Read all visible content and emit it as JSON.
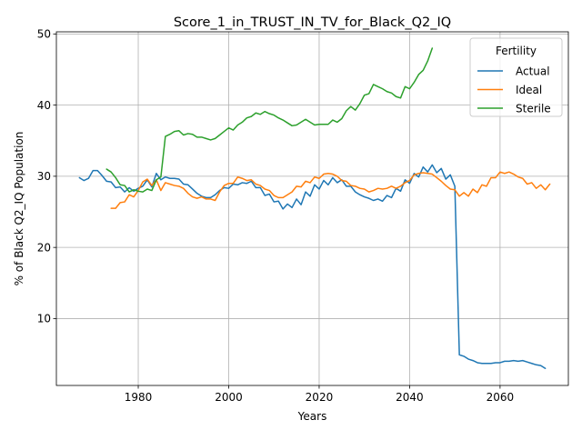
{
  "chart_data": {
    "type": "line",
    "title": "Score_1_in_TRUST_IN_TV_for_Black_Q2_IQ",
    "xlabel": "Years",
    "ylabel": "% of Black Q2_IQ Population",
    "xlim": [
      1961.9,
      2075.1
    ],
    "ylim": [
      0.6,
      50.3
    ],
    "xticks": [
      1980,
      2000,
      2020,
      2040,
      2060
    ],
    "yticks": [
      10,
      20,
      30,
      40,
      50
    ],
    "grid": true,
    "legend": {
      "title": "Fertility",
      "placement": "top-right"
    },
    "series": [
      {
        "name": "Actual",
        "color": "#1f77b4",
        "points": [
          [
            1967,
            29.8
          ],
          [
            1968,
            29.4
          ],
          [
            1969,
            29.7
          ],
          [
            1970,
            30.8
          ],
          [
            1971,
            30.8
          ],
          [
            1972,
            30.1
          ],
          [
            1973,
            29.3
          ],
          [
            1974,
            29.2
          ],
          [
            1975,
            28.4
          ],
          [
            1976,
            28.5
          ],
          [
            1977,
            27.8
          ],
          [
            1978,
            28.4
          ],
          [
            1979,
            27.9
          ],
          [
            1980,
            28.3
          ],
          [
            1981,
            28.6
          ],
          [
            1982,
            29.5
          ],
          [
            1983,
            28.5
          ],
          [
            1984,
            30.4
          ],
          [
            1985,
            29.5
          ],
          [
            1986,
            29.9
          ],
          [
            1987,
            29.7
          ],
          [
            1988,
            29.7
          ],
          [
            1989,
            29.6
          ],
          [
            1990,
            28.9
          ],
          [
            1991,
            28.8
          ],
          [
            1992,
            28.2
          ],
          [
            1993,
            27.6
          ],
          [
            1994,
            27.2
          ],
          [
            1995,
            27.0
          ],
          [
            1996,
            27.0
          ],
          [
            1997,
            27.4
          ],
          [
            1998,
            28.0
          ],
          [
            1999,
            28.4
          ],
          [
            2000,
            28.3
          ],
          [
            2001,
            28.9
          ],
          [
            2002,
            28.8
          ],
          [
            2003,
            29.1
          ],
          [
            2004,
            29.0
          ],
          [
            2005,
            29.3
          ],
          [
            2006,
            28.4
          ],
          [
            2007,
            28.4
          ],
          [
            2008,
            27.3
          ],
          [
            2009,
            27.5
          ],
          [
            2010,
            26.4
          ],
          [
            2011,
            26.5
          ],
          [
            2012,
            25.4
          ],
          [
            2013,
            26.1
          ],
          [
            2014,
            25.6
          ],
          [
            2015,
            26.8
          ],
          [
            2016,
            26.0
          ],
          [
            2017,
            27.8
          ],
          [
            2018,
            27.2
          ],
          [
            2019,
            28.8
          ],
          [
            2020,
            28.2
          ],
          [
            2021,
            29.4
          ],
          [
            2022,
            28.8
          ],
          [
            2023,
            29.8
          ],
          [
            2024,
            29.1
          ],
          [
            2025,
            29.5
          ],
          [
            2026,
            28.6
          ],
          [
            2027,
            28.6
          ],
          [
            2028,
            27.8
          ],
          [
            2029,
            27.4
          ],
          [
            2030,
            27.1
          ],
          [
            2031,
            26.9
          ],
          [
            2032,
            26.6
          ],
          [
            2033,
            26.8
          ],
          [
            2034,
            26.5
          ],
          [
            2035,
            27.3
          ],
          [
            2036,
            27.0
          ],
          [
            2037,
            28.3
          ],
          [
            2038,
            27.9
          ],
          [
            2039,
            29.5
          ],
          [
            2040,
            29.0
          ],
          [
            2041,
            30.4
          ],
          [
            2042,
            29.9
          ],
          [
            2043,
            31.3
          ],
          [
            2044,
            30.6
          ],
          [
            2045,
            31.6
          ],
          [
            2046,
            30.5
          ],
          [
            2047,
            31.1
          ],
          [
            2048,
            29.6
          ],
          [
            2049,
            30.2
          ],
          [
            2050,
            28.6
          ],
          [
            2051,
            4.9
          ],
          [
            2052,
            4.7
          ],
          [
            2053,
            4.3
          ],
          [
            2054,
            4.1
          ],
          [
            2055,
            3.8
          ],
          [
            2056,
            3.7
          ],
          [
            2057,
            3.7
          ],
          [
            2058,
            3.7
          ],
          [
            2059,
            3.8
          ],
          [
            2060,
            3.8
          ],
          [
            2061,
            4.0
          ],
          [
            2062,
            4.0
          ],
          [
            2063,
            4.1
          ],
          [
            2064,
            4.0
          ],
          [
            2065,
            4.1
          ],
          [
            2066,
            3.9
          ],
          [
            2067,
            3.7
          ],
          [
            2068,
            3.5
          ],
          [
            2069,
            3.4
          ],
          [
            2070,
            3.0
          ]
        ]
      },
      {
        "name": "Ideal",
        "color": "#ff7f0e",
        "points": [
          [
            1974,
            25.5
          ],
          [
            1975,
            25.5
          ],
          [
            1976,
            26.3
          ],
          [
            1977,
            26.4
          ],
          [
            1978,
            27.4
          ],
          [
            1979,
            27.1
          ],
          [
            1980,
            28.0
          ],
          [
            1981,
            29.2
          ],
          [
            1982,
            29.6
          ],
          [
            1983,
            28.7
          ],
          [
            1984,
            29.5
          ],
          [
            1985,
            28.0
          ],
          [
            1986,
            29.1
          ],
          [
            1987,
            28.9
          ],
          [
            1988,
            28.7
          ],
          [
            1989,
            28.6
          ],
          [
            1990,
            28.3
          ],
          [
            1991,
            27.6
          ],
          [
            1992,
            27.1
          ],
          [
            1993,
            26.9
          ],
          [
            1994,
            27.1
          ],
          [
            1995,
            26.8
          ],
          [
            1996,
            26.8
          ],
          [
            1997,
            26.6
          ],
          [
            1998,
            27.8
          ],
          [
            1999,
            28.7
          ],
          [
            2000,
            29.0
          ],
          [
            2001,
            29.0
          ],
          [
            2002,
            29.9
          ],
          [
            2003,
            29.7
          ],
          [
            2004,
            29.4
          ],
          [
            2005,
            29.5
          ],
          [
            2006,
            28.9
          ],
          [
            2007,
            28.7
          ],
          [
            2008,
            28.2
          ],
          [
            2009,
            28.0
          ],
          [
            2010,
            27.3
          ],
          [
            2011,
            27.0
          ],
          [
            2012,
            27.0
          ],
          [
            2013,
            27.4
          ],
          [
            2014,
            27.8
          ],
          [
            2015,
            28.6
          ],
          [
            2016,
            28.5
          ],
          [
            2017,
            29.3
          ],
          [
            2018,
            29.1
          ],
          [
            2019,
            29.9
          ],
          [
            2020,
            29.7
          ],
          [
            2021,
            30.3
          ],
          [
            2022,
            30.4
          ],
          [
            2023,
            30.3
          ],
          [
            2024,
            30.0
          ],
          [
            2025,
            29.4
          ],
          [
            2026,
            29.3
          ],
          [
            2027,
            28.7
          ],
          [
            2028,
            28.6
          ],
          [
            2029,
            28.3
          ],
          [
            2030,
            28.2
          ],
          [
            2031,
            27.8
          ],
          [
            2032,
            28.0
          ],
          [
            2033,
            28.3
          ],
          [
            2034,
            28.2
          ],
          [
            2035,
            28.3
          ],
          [
            2036,
            28.6
          ],
          [
            2037,
            28.3
          ],
          [
            2038,
            28.6
          ],
          [
            2039,
            29.1
          ],
          [
            2040,
            29.4
          ],
          [
            2041,
            30.2
          ],
          [
            2042,
            30.4
          ],
          [
            2043,
            30.5
          ],
          [
            2044,
            30.4
          ],
          [
            2045,
            30.3
          ],
          [
            2046,
            29.8
          ],
          [
            2047,
            29.3
          ],
          [
            2048,
            28.7
          ],
          [
            2049,
            28.2
          ],
          [
            2050,
            28.1
          ],
          [
            2051,
            27.2
          ],
          [
            2052,
            27.7
          ],
          [
            2053,
            27.2
          ],
          [
            2054,
            28.2
          ],
          [
            2055,
            27.7
          ],
          [
            2056,
            28.8
          ],
          [
            2057,
            28.6
          ],
          [
            2058,
            29.8
          ],
          [
            2059,
            29.8
          ],
          [
            2060,
            30.6
          ],
          [
            2061,
            30.4
          ],
          [
            2062,
            30.6
          ],
          [
            2063,
            30.3
          ],
          [
            2064,
            29.9
          ],
          [
            2065,
            29.7
          ],
          [
            2066,
            28.9
          ],
          [
            2067,
            29.1
          ],
          [
            2068,
            28.3
          ],
          [
            2069,
            28.8
          ],
          [
            2070,
            28.1
          ],
          [
            2071,
            28.9
          ]
        ]
      },
      {
        "name": "Sterile",
        "color": "#2ca02c",
        "points": [
          [
            1973,
            31.0
          ],
          [
            1974,
            30.6
          ],
          [
            1975,
            29.8
          ],
          [
            1976,
            28.8
          ],
          [
            1977,
            28.7
          ],
          [
            1978,
            27.8
          ],
          [
            1979,
            28.1
          ],
          [
            1980,
            27.9
          ],
          [
            1981,
            27.8
          ],
          [
            1982,
            28.2
          ],
          [
            1983,
            28.0
          ],
          [
            1984,
            29.5
          ],
          [
            1985,
            29.9
          ],
          [
            1986,
            35.6
          ],
          [
            1987,
            35.9
          ],
          [
            1988,
            36.3
          ],
          [
            1989,
            36.4
          ],
          [
            1990,
            35.8
          ],
          [
            1991,
            36.0
          ],
          [
            1992,
            35.9
          ],
          [
            1993,
            35.5
          ],
          [
            1994,
            35.5
          ],
          [
            1995,
            35.3
          ],
          [
            1996,
            35.1
          ],
          [
            1997,
            35.3
          ],
          [
            1998,
            35.8
          ],
          [
            1999,
            36.3
          ],
          [
            2000,
            36.8
          ],
          [
            2001,
            36.5
          ],
          [
            2002,
            37.2
          ],
          [
            2003,
            37.6
          ],
          [
            2004,
            38.2
          ],
          [
            2005,
            38.4
          ],
          [
            2006,
            38.9
          ],
          [
            2007,
            38.7
          ],
          [
            2008,
            39.1
          ],
          [
            2009,
            38.8
          ],
          [
            2010,
            38.6
          ],
          [
            2011,
            38.2
          ],
          [
            2012,
            37.9
          ],
          [
            2013,
            37.5
          ],
          [
            2014,
            37.1
          ],
          [
            2015,
            37.2
          ],
          [
            2016,
            37.6
          ],
          [
            2017,
            38.0
          ],
          [
            2018,
            37.6
          ],
          [
            2019,
            37.2
          ],
          [
            2020,
            37.3
          ],
          [
            2021,
            37.3
          ],
          [
            2022,
            37.3
          ],
          [
            2023,
            37.9
          ],
          [
            2024,
            37.6
          ],
          [
            2025,
            38.1
          ],
          [
            2026,
            39.2
          ],
          [
            2027,
            39.8
          ],
          [
            2028,
            39.3
          ],
          [
            2029,
            40.2
          ],
          [
            2030,
            41.4
          ],
          [
            2031,
            41.6
          ],
          [
            2032,
            42.9
          ],
          [
            2033,
            42.6
          ],
          [
            2034,
            42.3
          ],
          [
            2035,
            41.9
          ],
          [
            2036,
            41.7
          ],
          [
            2037,
            41.2
          ],
          [
            2038,
            41.0
          ],
          [
            2039,
            42.6
          ],
          [
            2040,
            42.3
          ],
          [
            2041,
            43.2
          ],
          [
            2042,
            44.3
          ],
          [
            2043,
            44.9
          ],
          [
            2044,
            46.2
          ],
          [
            2045,
            48.0
          ]
        ]
      }
    ]
  }
}
